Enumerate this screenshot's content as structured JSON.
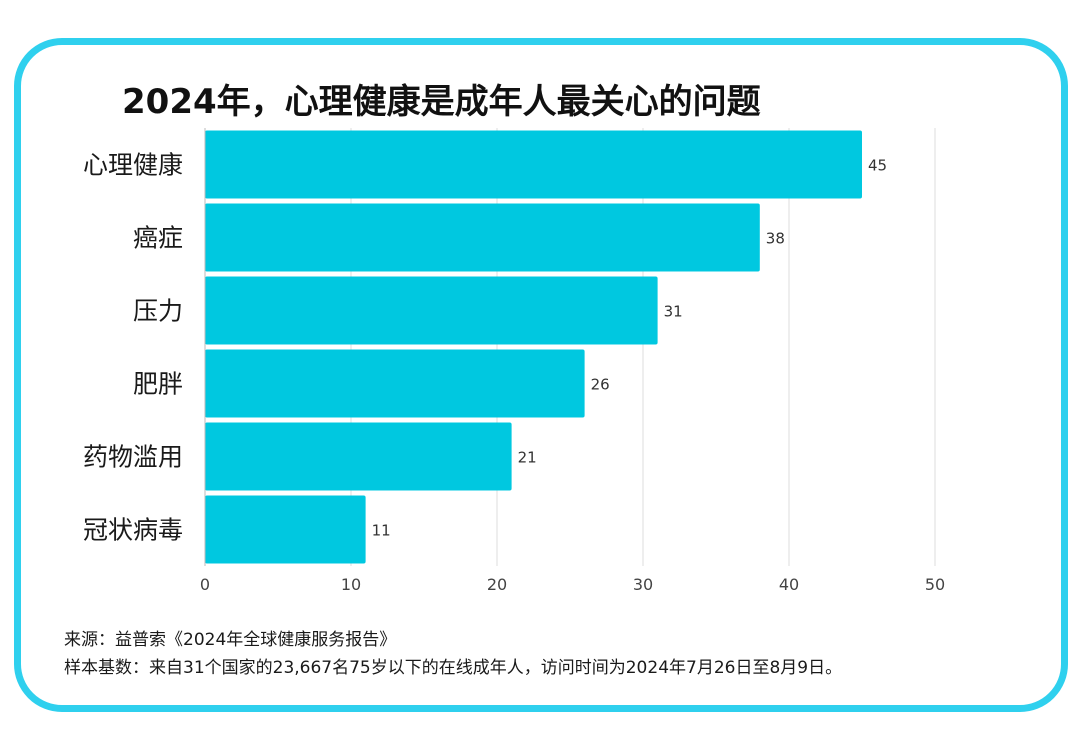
{
  "title": "2024年，心理健康是成年人最关心的问题",
  "footer": {
    "source": "来源：益普索《2024年全球健康服务报告》",
    "note": "样本基数：来自31个国家的23,667名75岁以下的在线成年人，访问时间为2024年7月26日至8月9日。"
  },
  "colors": {
    "bar": "#00c8e0",
    "frame": "#2fd0ee",
    "grid": "#dddddd"
  },
  "chart_data": {
    "type": "bar",
    "orientation": "horizontal",
    "title": "2024年，心理健康是成年人最关心的问题",
    "xlabel": "",
    "ylabel": "",
    "categories": [
      "心理健康",
      "癌症",
      "压力",
      "肥胖",
      "药物滥用",
      "冠状病毒"
    ],
    "values": [
      45,
      38,
      31,
      26,
      21,
      11
    ],
    "xlim": [
      0,
      50
    ],
    "xticks": [
      0,
      10,
      20,
      30,
      40,
      50
    ],
    "grid": true,
    "legend": "none"
  }
}
